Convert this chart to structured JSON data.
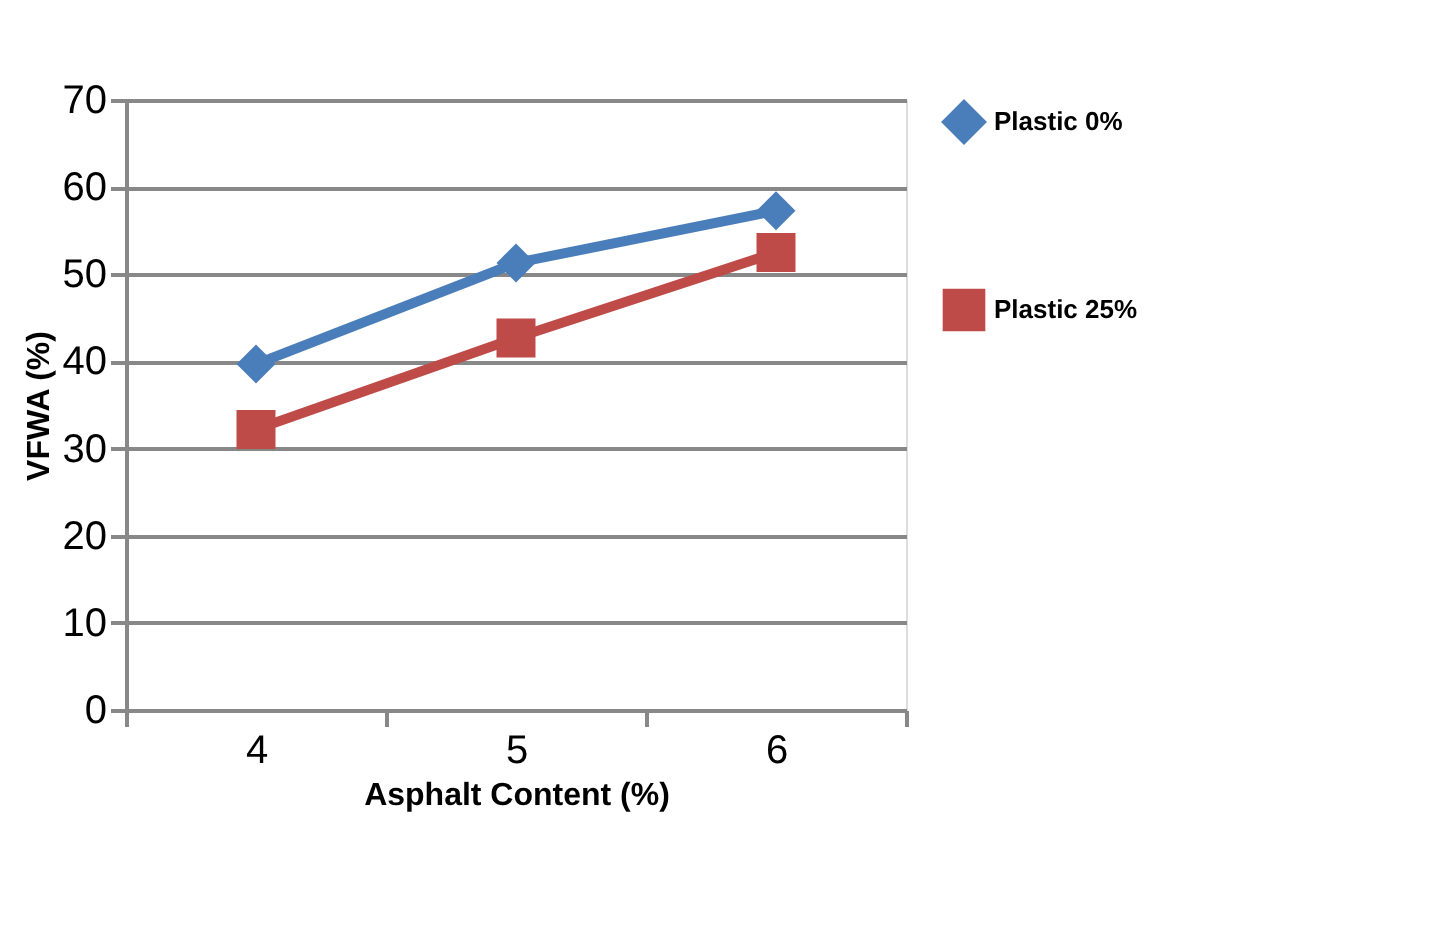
{
  "chart_data": {
    "type": "line",
    "xlabel": "Asphalt Content (%)",
    "ylabel": "VFWA (%)",
    "categories": [
      "4",
      "5",
      "6"
    ],
    "series": [
      {
        "name": "Plastic 0%",
        "color": "#4a7ebb",
        "marker": "diamond",
        "values": [
          39.7,
          51.3,
          57.3
        ]
      },
      {
        "name": "Plastic 25%",
        "color": "#be4b48",
        "marker": "square",
        "values": [
          32.2,
          42.7,
          52.5
        ]
      }
    ],
    "ylim": [
      0,
      70
    ],
    "yticks": [
      0,
      10,
      20,
      30,
      40,
      50,
      60,
      70
    ],
    "grid": "y",
    "legend": "right"
  }
}
